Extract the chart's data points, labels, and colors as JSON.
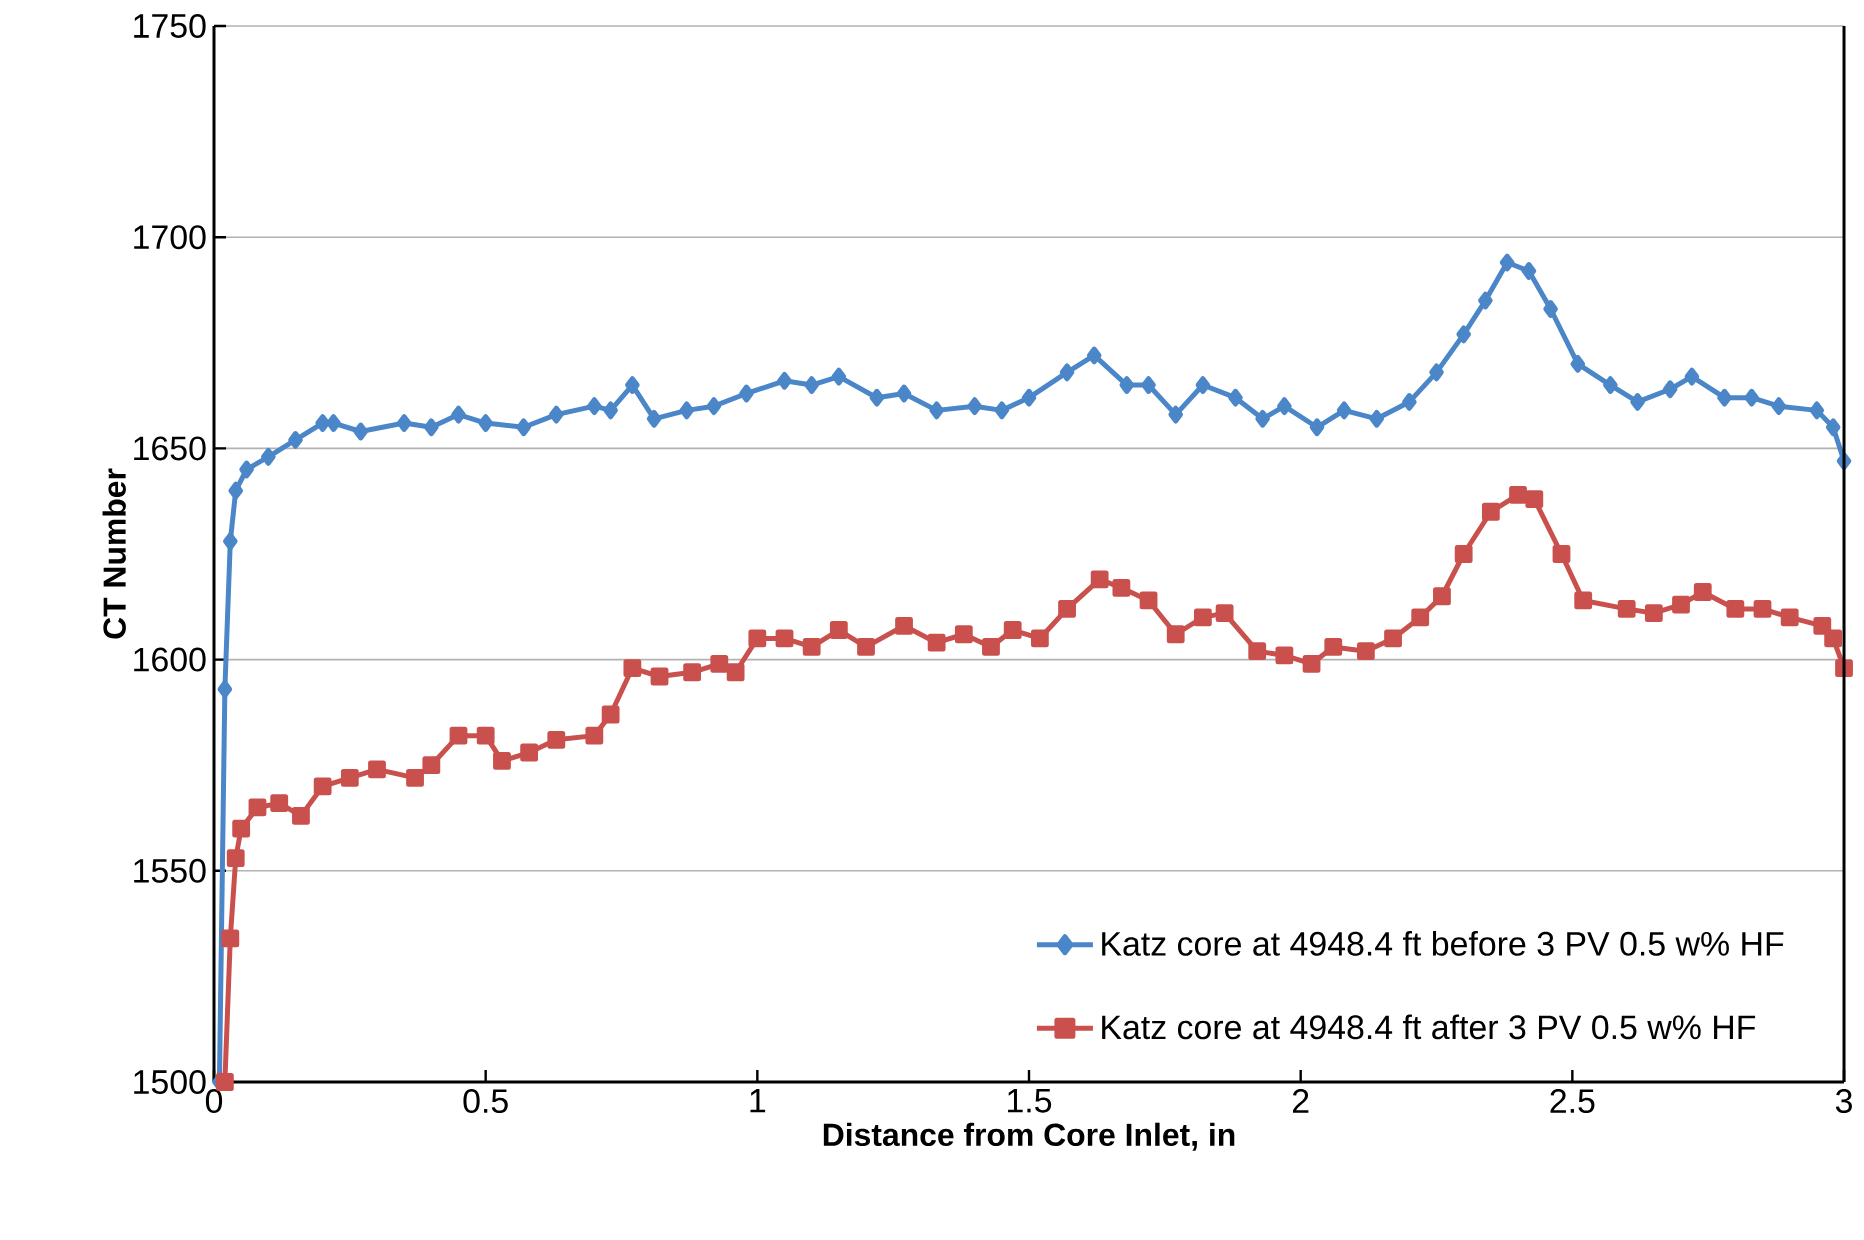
{
  "chart_data": {
    "type": "line",
    "xlabel": "Distance from Core Inlet, in",
    "ylabel": "CT Number",
    "xlim": [
      0,
      3
    ],
    "ylim": [
      1500,
      1750
    ],
    "xticks": [
      0,
      0.5,
      1,
      1.5,
      2,
      2.5,
      3
    ],
    "yticks": [
      1500,
      1550,
      1600,
      1650,
      1700,
      1750
    ],
    "grid": "y",
    "legend": "bottom right",
    "line_style": "solid",
    "series": [
      {
        "name": "Katz core at 4948.4 ft before 3 PV 0.5 w% HF",
        "color": "#4a86c8",
        "marker": "diamond",
        "x": [
          0.01,
          0.02,
          0.03,
          0.04,
          0.06,
          0.1,
          0.15,
          0.2,
          0.22,
          0.27,
          0.35,
          0.4,
          0.45,
          0.5,
          0.57,
          0.63,
          0.7,
          0.73,
          0.77,
          0.81,
          0.87,
          0.92,
          0.98,
          1.05,
          1.1,
          1.15,
          1.22,
          1.27,
          1.33,
          1.4,
          1.45,
          1.5,
          1.57,
          1.62,
          1.68,
          1.72,
          1.77,
          1.82,
          1.88,
          1.93,
          1.97,
          2.03,
          2.08,
          2.14,
          2.2,
          2.25,
          2.3,
          2.34,
          2.38,
          2.42,
          2.46,
          2.51,
          2.57,
          2.62,
          2.68,
          2.72,
          2.78,
          2.83,
          2.88,
          2.95,
          2.98,
          3.0
        ],
        "values": [
          1500,
          1593,
          1628,
          1640,
          1645,
          1648,
          1652,
          1656,
          1656,
          1654,
          1656,
          1655,
          1658,
          1656,
          1655,
          1658,
          1660,
          1659,
          1665,
          1657,
          1659,
          1660,
          1663,
          1666,
          1665,
          1667,
          1662,
          1663,
          1659,
          1660,
          1659,
          1662,
          1668,
          1672,
          1665,
          1665,
          1658,
          1665,
          1662,
          1657,
          1660,
          1655,
          1659,
          1657,
          1661,
          1668,
          1677,
          1685,
          1694,
          1692,
          1683,
          1670,
          1665,
          1661,
          1664,
          1667,
          1662,
          1662,
          1660,
          1659,
          1655,
          1647
        ]
      },
      {
        "name": "Katz core at 4948.4 ft after 3 PV 0.5 w% HF",
        "color": "#c9504c",
        "marker": "square",
        "x": [
          0.02,
          0.03,
          0.04,
          0.05,
          0.08,
          0.12,
          0.16,
          0.2,
          0.25,
          0.3,
          0.37,
          0.4,
          0.45,
          0.5,
          0.53,
          0.58,
          0.63,
          0.7,
          0.73,
          0.77,
          0.82,
          0.88,
          0.93,
          0.96,
          1.0,
          1.05,
          1.1,
          1.15,
          1.2,
          1.27,
          1.33,
          1.38,
          1.43,
          1.47,
          1.52,
          1.57,
          1.63,
          1.67,
          1.72,
          1.77,
          1.82,
          1.86,
          1.92,
          1.97,
          2.02,
          2.06,
          2.12,
          2.17,
          2.22,
          2.26,
          2.3,
          2.35,
          2.4,
          2.43,
          2.48,
          2.52,
          2.6,
          2.65,
          2.7,
          2.74,
          2.8,
          2.85,
          2.9,
          2.96,
          2.98,
          3.0
        ],
        "values": [
          1500,
          1534,
          1553,
          1560,
          1565,
          1566,
          1563,
          1570,
          1572,
          1574,
          1572,
          1575,
          1582,
          1582,
          1576,
          1578,
          1581,
          1582,
          1587,
          1598,
          1596,
          1597,
          1599,
          1597,
          1605,
          1605,
          1603,
          1607,
          1603,
          1608,
          1604,
          1606,
          1603,
          1607,
          1605,
          1612,
          1619,
          1617,
          1614,
          1606,
          1610,
          1611,
          1602,
          1601,
          1599,
          1603,
          1602,
          1605,
          1610,
          1615,
          1625,
          1635,
          1639,
          1638,
          1625,
          1614,
          1612,
          1611,
          1613,
          1616,
          1612,
          1612,
          1610,
          1608,
          1605,
          1598
        ]
      }
    ]
  }
}
